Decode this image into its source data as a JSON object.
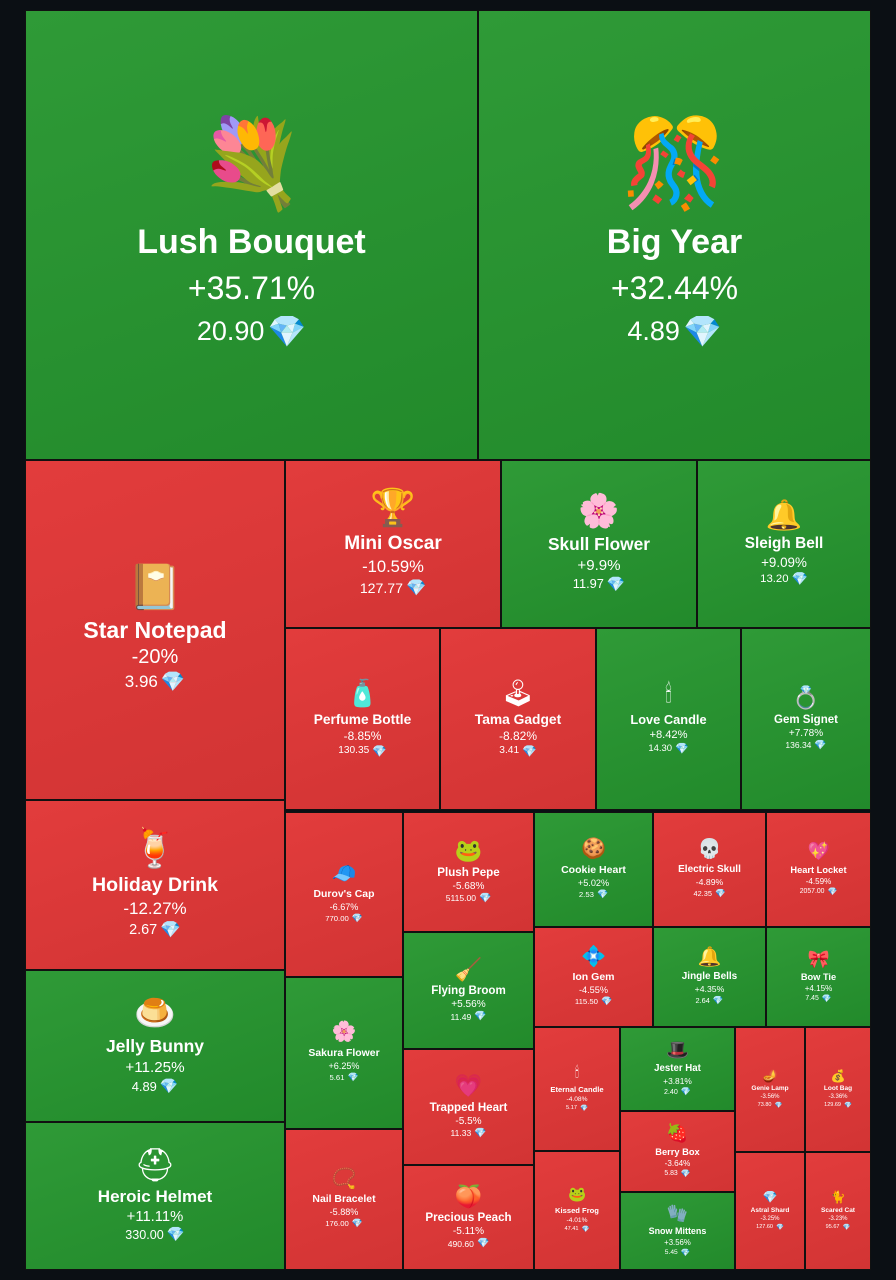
{
  "chart_data": {
    "type": "treemap",
    "items": [
      {
        "name": "Lush Bouquet",
        "change": "+35.71%",
        "price": "20.90",
        "icon": "bouquet-icon",
        "glyph": "💐",
        "trend": "up"
      },
      {
        "name": "Big Year",
        "change": "+32.44%",
        "price": "4.89",
        "icon": "2025-number-icon",
        "glyph": "🎊",
        "trend": "up"
      },
      {
        "name": "Star Notepad",
        "change": "-20%",
        "price": "3.96",
        "icon": "notepad-icon",
        "glyph": "📔",
        "trend": "down"
      },
      {
        "name": "Mini Oscar",
        "change": "-10.59%",
        "price": "127.77",
        "icon": "oscar-statue-icon",
        "glyph": "🏆",
        "trend": "down"
      },
      {
        "name": "Skull Flower",
        "change": "+9.9%",
        "price": "11.97",
        "icon": "skull-flower-icon",
        "glyph": "🌸",
        "trend": "up"
      },
      {
        "name": "Sleigh Bell",
        "change": "+9.09%",
        "price": "13.20",
        "icon": "sleigh-bell-icon",
        "glyph": "🔔",
        "trend": "up"
      },
      {
        "name": "Perfume Bottle",
        "change": "-8.85%",
        "price": "130.35",
        "icon": "perfume-bottle-icon",
        "glyph": "🧴",
        "trend": "down"
      },
      {
        "name": "Tama Gadget",
        "change": "-8.82%",
        "price": "3.41",
        "icon": "tamagotchi-icon",
        "glyph": "🕹",
        "trend": "down"
      },
      {
        "name": "Love Candle",
        "change": "+8.42%",
        "price": "14.30",
        "icon": "candle-icon",
        "glyph": "🕯",
        "trend": "up"
      },
      {
        "name": "Gem Signet",
        "change": "+7.78%",
        "price": "136.34",
        "icon": "ring-icon",
        "glyph": "💍",
        "trend": "up"
      },
      {
        "name": "Holiday Drink",
        "change": "-12.27%",
        "price": "2.67",
        "icon": "holiday-drink-icon",
        "glyph": "🍹",
        "trend": "down"
      },
      {
        "name": "Durov's Cap",
        "change": "-6.67%",
        "price": "770.00",
        "icon": "cap-icon",
        "glyph": "🧢",
        "trend": "down"
      },
      {
        "name": "Plush Pepe",
        "change": "-5.68%",
        "price": "5115.00",
        "icon": "plush-frog-icon",
        "glyph": "🐸",
        "trend": "down"
      },
      {
        "name": "Cookie Heart",
        "change": "+5.02%",
        "price": "2.53",
        "icon": "cookie-heart-icon",
        "glyph": "🍪",
        "trend": "up"
      },
      {
        "name": "Electric Skull",
        "change": "-4.89%",
        "price": "42.35",
        "icon": "skull-icon",
        "glyph": "💀",
        "trend": "down"
      },
      {
        "name": "Heart Locket",
        "change": "-4.59%",
        "price": "2057.00",
        "icon": "heart-locket-icon",
        "glyph": "💖",
        "trend": "down"
      },
      {
        "name": "Jelly Bunny",
        "change": "+11.25%",
        "price": "4.89",
        "icon": "jelly-bunny-icon",
        "glyph": "🍮",
        "trend": "up"
      },
      {
        "name": "Sakura Flower",
        "change": "+6.25%",
        "price": "5.61",
        "icon": "sakura-icon",
        "glyph": "🌸",
        "trend": "up"
      },
      {
        "name": "Flying Broom",
        "change": "+5.56%",
        "price": "11.49",
        "icon": "broom-icon",
        "glyph": "🧹",
        "trend": "up"
      },
      {
        "name": "Ion Gem",
        "change": "-4.55%",
        "price": "115.50",
        "icon": "ion-gem-icon",
        "glyph": "💠",
        "trend": "down"
      },
      {
        "name": "Jingle Bells",
        "change": "+4.35%",
        "price": "2.64",
        "icon": "jingle-bells-icon",
        "glyph": "🔔",
        "trend": "up"
      },
      {
        "name": "Bow Tie",
        "change": "+4.15%",
        "price": "7.45",
        "icon": "bow-tie-icon",
        "glyph": "🎀",
        "trend": "up"
      },
      {
        "name": "Heroic Helmet",
        "change": "+11.11%",
        "price": "330.00",
        "icon": "helmet-icon",
        "glyph": "⛑",
        "trend": "up"
      },
      {
        "name": "Nail Bracelet",
        "change": "-5.88%",
        "price": "176.00",
        "icon": "bracelet-icon",
        "glyph": "📿",
        "trend": "down"
      },
      {
        "name": "Trapped Heart",
        "change": "-5.5%",
        "price": "11.33",
        "icon": "trapped-heart-icon",
        "glyph": "💗",
        "trend": "down"
      },
      {
        "name": "Precious Peach",
        "change": "-5.11%",
        "price": "490.60",
        "icon": "peach-icon",
        "glyph": "🍑",
        "trend": "down"
      },
      {
        "name": "Eternal Candle",
        "change": "-4.08%",
        "price": "5.17",
        "icon": "eternal-candle-icon",
        "glyph": "🕯",
        "trend": "down"
      },
      {
        "name": "Jester Hat",
        "change": "+3.81%",
        "price": "2.40",
        "icon": "jester-hat-icon",
        "glyph": "🎩",
        "trend": "up"
      },
      {
        "name": "Genie Lamp",
        "change": "-3.56%",
        "price": "73.80",
        "icon": "genie-lamp-icon",
        "glyph": "🪔",
        "trend": "down"
      },
      {
        "name": "Loot Bag",
        "change": "-3.36%",
        "price": "129.69",
        "icon": "loot-bag-icon",
        "glyph": "💰",
        "trend": "down"
      },
      {
        "name": "Berry Box",
        "change": "-3.64%",
        "price": "5.83",
        "icon": "berry-box-icon",
        "glyph": "🍓",
        "trend": "down"
      },
      {
        "name": "Kissed Frog",
        "change": "-4.01%",
        "price": "47.41",
        "icon": "kissed-frog-icon",
        "glyph": "🐸",
        "trend": "down"
      },
      {
        "name": "Snow Mittens",
        "change": "+3.56%",
        "price": "5.45",
        "icon": "mittens-icon",
        "glyph": "🧤",
        "trend": "up"
      },
      {
        "name": "Astral Shard",
        "change": "-3.25%",
        "price": "127.60",
        "icon": "astral-shard-icon",
        "glyph": "💎",
        "trend": "down"
      },
      {
        "name": "Scared Cat",
        "change": "-3.23%",
        "price": "95.67",
        "icon": "scared-cat-icon",
        "glyph": "🐈",
        "trend": "down"
      }
    ]
  },
  "currency_icon": "diamond-icon",
  "currency_glyph": "💎",
  "colors": {
    "up": "#2a9232",
    "down": "#dc3838",
    "background": "#0b0f14"
  }
}
